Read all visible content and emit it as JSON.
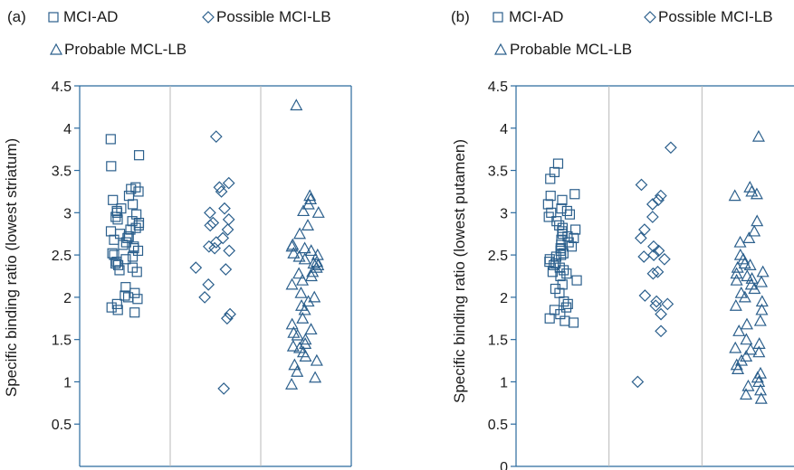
{
  "colors": {
    "marker": "#2b5f8c",
    "axis": "#2b6a9e",
    "divider": "#b8b8b8",
    "text": "#1a1a1a"
  },
  "chart_data": [
    {
      "type": "scatter",
      "panel_label": "(a)",
      "ylabel": "Specific binding ratio (lowest striatum)",
      "ylim": [
        0,
        4.5
      ],
      "yticks": [
        "0.5",
        "1",
        "1.5",
        "2",
        "2.5",
        "3",
        "3.5",
        "4",
        "4.5"
      ],
      "legend": [
        {
          "name": "MCI-AD",
          "marker": "square"
        },
        {
          "name": "Possible MCI-LB",
          "marker": "diamond"
        },
        {
          "name": "Probable MCL-LB",
          "marker": "triangle"
        }
      ],
      "series": [
        {
          "name": "MCI-AD",
          "marker": "square",
          "values": [
            3.87,
            3.68,
            3.55,
            3.3,
            3.28,
            3.25,
            3.2,
            3.15,
            3.1,
            3.05,
            3.02,
            3.0,
            2.98,
            2.95,
            2.92,
            2.9,
            2.88,
            2.85,
            2.82,
            2.8,
            2.78,
            2.75,
            2.72,
            2.7,
            2.68,
            2.65,
            2.62,
            2.6,
            2.58,
            2.55,
            2.52,
            2.5,
            2.48,
            2.45,
            2.42,
            2.4,
            2.38,
            2.35,
            2.32,
            2.3,
            2.12,
            2.05,
            2.02,
            2.0,
            1.98,
            1.92,
            1.88,
            1.85,
            1.82
          ]
        },
        {
          "name": "Possible MCI-LB",
          "marker": "diamond",
          "values": [
            3.9,
            3.35,
            3.3,
            3.25,
            3.05,
            3.0,
            2.92,
            2.88,
            2.85,
            2.8,
            2.7,
            2.65,
            2.6,
            2.58,
            2.55,
            2.35,
            2.33,
            2.15,
            2.0,
            1.8,
            1.75,
            0.92
          ]
        },
        {
          "name": "Probable MCL-LB",
          "marker": "triangle",
          "values": [
            4.27,
            3.2,
            3.16,
            3.1,
            3.02,
            3.0,
            2.85,
            2.75,
            2.62,
            2.6,
            2.58,
            2.55,
            2.52,
            2.5,
            2.48,
            2.45,
            2.42,
            2.4,
            2.38,
            2.35,
            2.3,
            2.28,
            2.25,
            2.2,
            2.15,
            2.05,
            2.0,
            1.95,
            1.9,
            1.85,
            1.75,
            1.68,
            1.62,
            1.58,
            1.55,
            1.5,
            1.45,
            1.42,
            1.4,
            1.35,
            1.3,
            1.25,
            1.2,
            1.12,
            1.05,
            0.97
          ]
        }
      ]
    },
    {
      "type": "scatter",
      "panel_label": "(b)",
      "ylabel": "Specific binding ratio (lowest putamen)",
      "ylim": [
        0,
        4.5
      ],
      "yticks": [
        "0",
        "0.5",
        "1",
        "1.5",
        "2",
        "2.5",
        "3",
        "3.5",
        "4",
        "4.5"
      ],
      "legend": [
        {
          "name": "MCI-AD",
          "marker": "square"
        },
        {
          "name": "Possible MCI-LB",
          "marker": "diamond"
        },
        {
          "name": "Probable MCL-LB",
          "marker": "triangle"
        }
      ],
      "series": [
        {
          "name": "MCI-AD",
          "marker": "square",
          "values": [
            3.58,
            3.48,
            3.4,
            3.22,
            3.2,
            3.15,
            3.1,
            3.05,
            3.02,
            3.0,
            2.98,
            2.95,
            2.9,
            2.85,
            2.82,
            2.8,
            2.78,
            2.75,
            2.72,
            2.7,
            2.68,
            2.65,
            2.62,
            2.6,
            2.58,
            2.55,
            2.52,
            2.5,
            2.48,
            2.45,
            2.42,
            2.4,
            2.38,
            2.35,
            2.32,
            2.3,
            2.28,
            2.25,
            2.2,
            2.15,
            2.1,
            2.05,
            1.95,
            1.92,
            1.88,
            1.85,
            1.8,
            1.75,
            1.72,
            1.7
          ]
        },
        {
          "name": "Possible MCI-LB",
          "marker": "diamond",
          "values": [
            3.77,
            3.33,
            3.2,
            3.15,
            3.1,
            2.95,
            2.8,
            2.7,
            2.6,
            2.55,
            2.5,
            2.48,
            2.45,
            2.3,
            2.28,
            2.02,
            1.95,
            1.92,
            1.9,
            1.8,
            1.6,
            1.0
          ]
        },
        {
          "name": "Probable MCL-LB",
          "marker": "triangle",
          "values": [
            3.9,
            3.3,
            3.25,
            3.22,
            3.2,
            2.9,
            2.78,
            2.7,
            2.65,
            2.5,
            2.45,
            2.4,
            2.38,
            2.35,
            2.3,
            2.28,
            2.25,
            2.22,
            2.2,
            2.18,
            2.15,
            2.1,
            2.05,
            2.0,
            1.95,
            1.9,
            1.85,
            1.72,
            1.68,
            1.6,
            1.5,
            1.45,
            1.4,
            1.38,
            1.35,
            1.3,
            1.25,
            1.2,
            1.15,
            1.1,
            1.05,
            1.0,
            0.95,
            0.9,
            0.85,
            0.8
          ]
        }
      ]
    }
  ]
}
